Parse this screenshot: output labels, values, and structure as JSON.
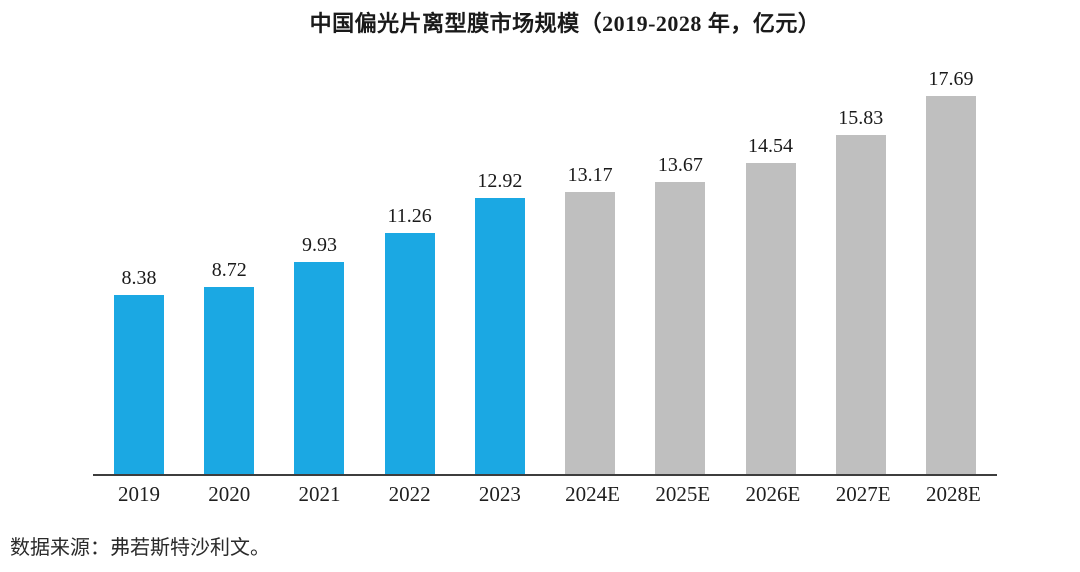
{
  "page": {
    "source_note": "数据来源：弗若斯特沙利文。"
  },
  "chart_data": {
    "type": "bar",
    "title": "中国偏光片离型膜市场规模（2019-2028 年，亿元）",
    "xlabel": "",
    "ylabel": "",
    "unit": "亿元",
    "categories": [
      "2019",
      "2020",
      "2021",
      "2022",
      "2023",
      "2024E",
      "2025E",
      "2026E",
      "2027E",
      "2028E"
    ],
    "values": [
      8.38,
      8.72,
      9.93,
      11.26,
      12.92,
      13.17,
      13.67,
      14.54,
      15.83,
      17.69
    ],
    "bar_roles": [
      "actual",
      "actual",
      "actual",
      "actual",
      "actual",
      "forecast",
      "forecast",
      "forecast",
      "forecast",
      "forecast"
    ],
    "colors": {
      "actual": "#1BA8E3",
      "forecast": "#BFBFBF",
      "axis_line": "#3d3d3d",
      "label_text": "#1a1a1a"
    },
    "ylim": [
      0,
      19.35
    ],
    "grid": false,
    "legend": false,
    "value_labels_shown": true,
    "y_axis_shown": false
  }
}
